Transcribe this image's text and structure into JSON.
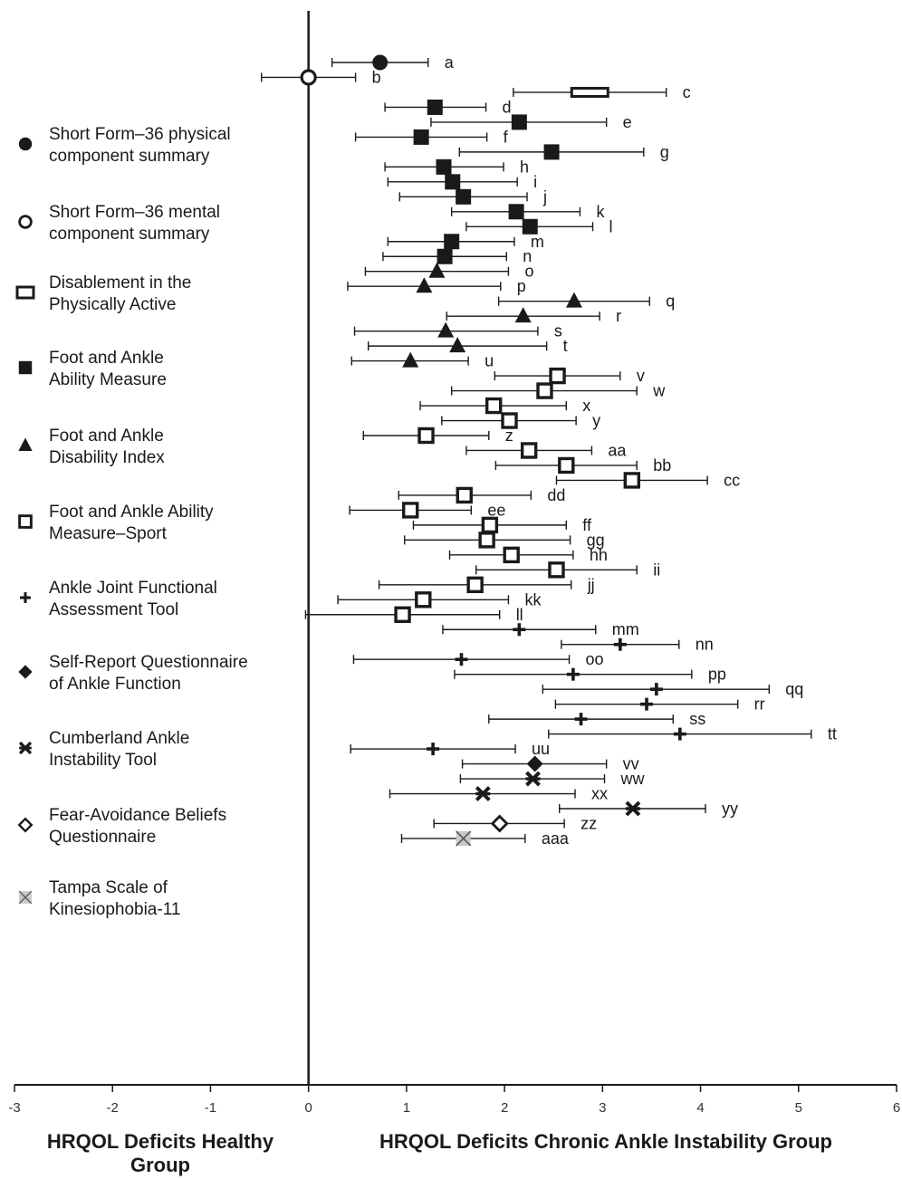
{
  "chart_data": {
    "type": "forest",
    "xlim": [
      -3,
      6
    ],
    "xticks": [
      -3,
      -2,
      -1,
      0,
      1,
      2,
      3,
      4,
      5,
      6
    ],
    "xlabel_left": "HRQOL Deficits Healthy Group",
    "xlabel_right": "HRQOL Deficits Chronic Ankle Instability Group",
    "legend": [
      {
        "symbol": "filled-circle",
        "label": "Short Form–36 physical component summary",
        "lines": [
          "Short Form–36 physical",
          "component summary"
        ]
      },
      {
        "symbol": "open-circle",
        "label": "Short Form–36 mental component summary",
        "lines": [
          "Short Form–36 mental",
          "component summary"
        ]
      },
      {
        "symbol": "open-rect",
        "label": "Disablement in the Physically Active",
        "lines": [
          "Disablement in the",
          "Physically Active"
        ]
      },
      {
        "symbol": "filled-square",
        "label": "Foot and Ankle Ability Measure",
        "lines": [
          "Foot and Ankle",
          "Ability Measure"
        ]
      },
      {
        "symbol": "filled-triangle",
        "label": "Foot and Ankle Disability Index",
        "lines": [
          "Foot and Ankle",
          "Disability Index"
        ]
      },
      {
        "symbol": "open-square",
        "label": "Foot and Ankle Ability Measure–Sport",
        "lines": [
          "Foot and Ankle Ability",
          "Measure–Sport"
        ]
      },
      {
        "symbol": "plus",
        "label": "Ankle Joint Functional Assessment Tool",
        "lines": [
          "Ankle Joint Functional",
          "Assessment Tool"
        ]
      },
      {
        "symbol": "filled-diamond",
        "label": "Self-Report Questionnaire of Ankle Function",
        "lines": [
          "Self-Report Questionnaire",
          "of Ankle Function"
        ]
      },
      {
        "symbol": "asterisk",
        "label": "Cumberland Ankle Instability Tool",
        "lines": [
          "Cumberland Ankle",
          "Instability Tool"
        ]
      },
      {
        "symbol": "open-diamond",
        "label": "Fear-Avoidance Beliefs Questionnaire",
        "lines": [
          "Fear-Avoidance Beliefs",
          "Questionnaire"
        ]
      },
      {
        "symbol": "gray-x",
        "label": "Tampa Scale of Kinesiophobia-11",
        "lines": [
          "Tampa Scale of",
          "Kinesiophobia-11"
        ]
      }
    ],
    "studies": [
      {
        "label": "a",
        "symbol": "filled-circle",
        "est": 0.73,
        "lo": 0.24,
        "hi": 1.22
      },
      {
        "label": "b",
        "symbol": "open-circle",
        "est": 0.0,
        "lo": -0.48,
        "hi": 0.48
      },
      {
        "label": "c",
        "symbol": "open-rect",
        "est": 2.87,
        "lo": 2.09,
        "hi": 3.65
      },
      {
        "label": "d",
        "symbol": "filled-square",
        "est": 1.29,
        "lo": 0.78,
        "hi": 1.81
      },
      {
        "label": "e",
        "symbol": "filled-square",
        "est": 2.15,
        "lo": 1.25,
        "hi": 3.04
      },
      {
        "label": "f",
        "symbol": "filled-square",
        "est": 1.15,
        "lo": 0.48,
        "hi": 1.82
      },
      {
        "label": "g",
        "symbol": "filled-square",
        "est": 2.48,
        "lo": 1.54,
        "hi": 3.42
      },
      {
        "label": "h",
        "symbol": "filled-square",
        "est": 1.38,
        "lo": 0.78,
        "hi": 1.99
      },
      {
        "label": "i",
        "symbol": "filled-square",
        "est": 1.47,
        "lo": 0.81,
        "hi": 2.13
      },
      {
        "label": "j",
        "symbol": "filled-square",
        "est": 1.58,
        "lo": 0.93,
        "hi": 2.23
      },
      {
        "label": "k",
        "symbol": "filled-square",
        "est": 2.12,
        "lo": 1.46,
        "hi": 2.77
      },
      {
        "label": "l",
        "symbol": "filled-square",
        "est": 2.26,
        "lo": 1.61,
        "hi": 2.9
      },
      {
        "label": "m",
        "symbol": "filled-square",
        "est": 1.46,
        "lo": 0.81,
        "hi": 2.1
      },
      {
        "label": "n",
        "symbol": "filled-square",
        "est": 1.39,
        "lo": 0.76,
        "hi": 2.02
      },
      {
        "label": "o",
        "symbol": "filled-triangle",
        "est": 1.31,
        "lo": 0.58,
        "hi": 2.04
      },
      {
        "label": "p",
        "symbol": "filled-triangle",
        "est": 1.18,
        "lo": 0.4,
        "hi": 1.96
      },
      {
        "label": "q",
        "symbol": "filled-triangle",
        "est": 2.71,
        "lo": 1.94,
        "hi": 3.48
      },
      {
        "label": "r",
        "symbol": "filled-triangle",
        "est": 2.19,
        "lo": 1.41,
        "hi": 2.97
      },
      {
        "label": "s",
        "symbol": "filled-triangle",
        "est": 1.4,
        "lo": 0.47,
        "hi": 2.34
      },
      {
        "label": "t",
        "symbol": "filled-triangle",
        "est": 1.52,
        "lo": 0.61,
        "hi": 2.43
      },
      {
        "label": "u",
        "symbol": "filled-triangle",
        "est": 1.04,
        "lo": 0.44,
        "hi": 1.63
      },
      {
        "label": "v",
        "symbol": "open-square",
        "est": 2.54,
        "lo": 1.9,
        "hi": 3.18
      },
      {
        "label": "w",
        "symbol": "open-square",
        "est": 2.41,
        "lo": 1.46,
        "hi": 3.35
      },
      {
        "label": "x",
        "symbol": "open-square",
        "est": 1.89,
        "lo": 1.14,
        "hi": 2.63
      },
      {
        "label": "y",
        "symbol": "open-square",
        "est": 2.05,
        "lo": 1.36,
        "hi": 2.73
      },
      {
        "label": "z",
        "symbol": "open-square",
        "est": 1.2,
        "lo": 0.56,
        "hi": 1.84
      },
      {
        "label": "aa",
        "symbol": "open-square",
        "est": 2.25,
        "lo": 1.61,
        "hi": 2.89
      },
      {
        "label": "bb",
        "symbol": "open-square",
        "est": 2.63,
        "lo": 1.91,
        "hi": 3.35
      },
      {
        "label": "cc",
        "symbol": "open-square",
        "est": 3.3,
        "lo": 2.53,
        "hi": 4.07
      },
      {
        "label": "dd",
        "symbol": "open-square",
        "est": 1.59,
        "lo": 0.92,
        "hi": 2.27
      },
      {
        "label": "ee",
        "symbol": "open-square",
        "est": 1.04,
        "lo": 0.42,
        "hi": 1.66
      },
      {
        "label": "ff",
        "symbol": "open-square",
        "est": 1.85,
        "lo": 1.07,
        "hi": 2.63
      },
      {
        "label": "gg",
        "symbol": "open-square",
        "est": 1.82,
        "lo": 0.98,
        "hi": 2.67
      },
      {
        "label": "hh",
        "symbol": "open-square",
        "est": 2.07,
        "lo": 1.44,
        "hi": 2.7
      },
      {
        "label": "ii",
        "symbol": "open-square",
        "est": 2.53,
        "lo": 1.71,
        "hi": 3.35
      },
      {
        "label": "jj",
        "symbol": "open-square",
        "est": 1.7,
        "lo": 0.72,
        "hi": 2.68
      },
      {
        "label": "kk",
        "symbol": "open-square",
        "est": 1.17,
        "lo": 0.3,
        "hi": 2.04
      },
      {
        "label": "ll",
        "symbol": "open-square",
        "est": 0.96,
        "lo": -0.03,
        "hi": 1.95
      },
      {
        "label": "mm",
        "symbol": "plus",
        "est": 2.15,
        "lo": 1.37,
        "hi": 2.93
      },
      {
        "label": "nn",
        "symbol": "plus",
        "est": 3.18,
        "lo": 2.58,
        "hi": 3.78
      },
      {
        "label": "oo",
        "symbol": "plus",
        "est": 1.56,
        "lo": 0.46,
        "hi": 2.66
      },
      {
        "label": "pp",
        "symbol": "plus",
        "est": 2.7,
        "lo": 1.49,
        "hi": 3.91
      },
      {
        "label": "qq",
        "symbol": "plus",
        "est": 3.55,
        "lo": 2.39,
        "hi": 4.7
      },
      {
        "label": "rr",
        "symbol": "plus",
        "est": 3.45,
        "lo": 2.52,
        "hi": 4.38
      },
      {
        "label": "ss",
        "symbol": "plus",
        "est": 2.78,
        "lo": 1.84,
        "hi": 3.72
      },
      {
        "label": "tt",
        "symbol": "plus",
        "est": 3.79,
        "lo": 2.45,
        "hi": 5.13
      },
      {
        "label": "uu",
        "symbol": "plus",
        "est": 1.27,
        "lo": 0.43,
        "hi": 2.11
      },
      {
        "label": "vv",
        "symbol": "filled-diamond",
        "est": 2.31,
        "lo": 1.57,
        "hi": 3.04
      },
      {
        "label": "ww",
        "symbol": "asterisk",
        "est": 2.29,
        "lo": 1.55,
        "hi": 3.02
      },
      {
        "label": "xx",
        "symbol": "asterisk",
        "est": 1.78,
        "lo": 0.83,
        "hi": 2.72
      },
      {
        "label": "yy",
        "symbol": "asterisk",
        "est": 3.31,
        "lo": 2.56,
        "hi": 4.05
      },
      {
        "label": "zz",
        "symbol": "open-diamond",
        "est": 1.95,
        "lo": 1.28,
        "hi": 2.61
      },
      {
        "label": "aaa",
        "symbol": "gray-x",
        "est": 1.58,
        "lo": 0.95,
        "hi": 2.21
      }
    ]
  }
}
